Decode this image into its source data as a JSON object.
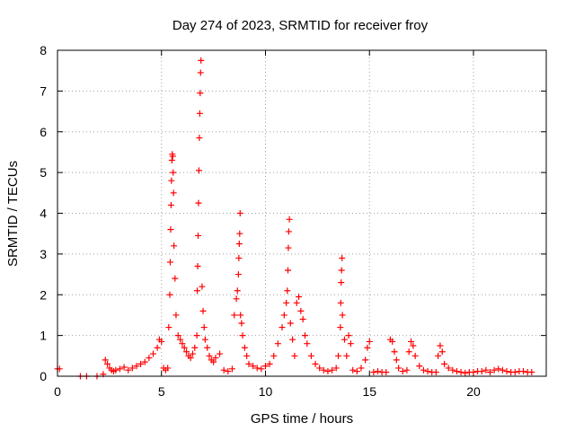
{
  "chart_data": {
    "type": "scatter",
    "title": "Day 274 of 2023, SRMTID for receiver froy",
    "xlabel": "GPS time / hours",
    "ylabel": "SRMTID / TECUs",
    "xlim": [
      0,
      23.5
    ],
    "ylim": [
      0,
      8
    ],
    "xticks": [
      0,
      5,
      10,
      15,
      20
    ],
    "yticks": [
      0,
      1,
      2,
      3,
      4,
      5,
      6,
      7,
      8
    ],
    "xtick_labels": [
      "0",
      "5",
      "10",
      "15",
      "20"
    ],
    "ytick_labels": [
      "0",
      "1",
      "2",
      "3",
      "4",
      "5",
      "6",
      "7",
      "8"
    ],
    "grid": true,
    "marker": "plus",
    "marker_color": "#ff0000",
    "series": [
      {
        "x": [
          0.0,
          0.1,
          1.1,
          1.4,
          1.9,
          2.2,
          2.3,
          2.4,
          2.5,
          2.6,
          2.7,
          2.8,
          3.0,
          3.2,
          3.4,
          3.6,
          3.8,
          4.0,
          4.2,
          4.4,
          4.6,
          4.8,
          4.9,
          5.0,
          5.1,
          5.2,
          5.3,
          5.35,
          5.4,
          5.42,
          5.44,
          5.46,
          5.48,
          5.5,
          5.52,
          5.54,
          5.56,
          5.58,
          5.6,
          5.65,
          5.7,
          5.8,
          5.9,
          6.0,
          6.1,
          6.2,
          6.3,
          6.4,
          6.5,
          6.6,
          6.7,
          6.72,
          6.74,
          6.76,
          6.78,
          6.8,
          6.82,
          6.84,
          6.86,
          6.88,
          6.9,
          6.95,
          7.0,
          7.05,
          7.1,
          7.2,
          7.3,
          7.4,
          7.5,
          7.6,
          7.8,
          8.0,
          8.2,
          8.4,
          8.5,
          8.6,
          8.65,
          8.7,
          8.72,
          8.74,
          8.76,
          8.78,
          8.8,
          8.85,
          8.9,
          9.0,
          9.1,
          9.2,
          9.4,
          9.6,
          9.8,
          10.0,
          10.2,
          10.4,
          10.6,
          10.8,
          10.9,
          11.0,
          11.05,
          11.08,
          11.1,
          11.12,
          11.15,
          11.2,
          11.3,
          11.4,
          11.5,
          11.6,
          11.7,
          11.8,
          11.9,
          12.0,
          12.2,
          12.4,
          12.6,
          12.8,
          13.0,
          13.2,
          13.4,
          13.5,
          13.6,
          13.62,
          13.64,
          13.66,
          13.68,
          13.7,
          13.8,
          13.9,
          14.0,
          14.1,
          14.2,
          14.4,
          14.6,
          14.8,
          14.9,
          15.0,
          15.2,
          15.4,
          15.6,
          15.8,
          16.0,
          16.1,
          16.2,
          16.3,
          16.4,
          16.6,
          16.8,
          16.9,
          17.0,
          17.1,
          17.2,
          17.4,
          17.6,
          17.8,
          18.0,
          18.2,
          18.3,
          18.4,
          18.5,
          18.6,
          18.8,
          19.0,
          19.2,
          19.4,
          19.6,
          19.8,
          20.0,
          20.2,
          20.4,
          20.6,
          20.8,
          21.0,
          21.2,
          21.4,
          21.6,
          21.8,
          22.0,
          22.2,
          22.4,
          22.6,
          22.8
        ],
        "y": [
          0.18,
          0.18,
          0.0,
          0.0,
          0.0,
          0.05,
          0.4,
          0.3,
          0.2,
          0.15,
          0.12,
          0.15,
          0.18,
          0.22,
          0.15,
          0.2,
          0.25,
          0.3,
          0.35,
          0.45,
          0.55,
          0.7,
          0.9,
          0.85,
          0.2,
          0.15,
          0.2,
          1.2,
          2.0,
          2.8,
          3.6,
          4.2,
          4.8,
          5.3,
          5.45,
          5.4,
          5.0,
          4.5,
          3.2,
          2.4,
          1.5,
          1.0,
          0.9,
          0.8,
          0.7,
          0.6,
          0.5,
          0.45,
          0.55,
          0.7,
          1.0,
          2.1,
          2.7,
          3.45,
          4.25,
          5.05,
          5.85,
          6.45,
          6.95,
          7.45,
          7.75,
          2.2,
          1.6,
          1.2,
          0.9,
          0.7,
          0.5,
          0.4,
          0.35,
          0.45,
          0.55,
          0.15,
          0.12,
          0.18,
          1.5,
          1.9,
          2.1,
          2.5,
          2.9,
          3.25,
          3.5,
          4.0,
          1.5,
          1.3,
          1.0,
          0.7,
          0.5,
          0.3,
          0.25,
          0.2,
          0.18,
          0.25,
          0.3,
          0.5,
          0.8,
          1.2,
          1.5,
          1.8,
          2.1,
          2.6,
          3.15,
          3.55,
          3.85,
          1.3,
          0.9,
          0.5,
          1.8,
          1.95,
          1.6,
          1.4,
          1.0,
          0.8,
          0.5,
          0.3,
          0.2,
          0.15,
          0.12,
          0.15,
          0.2,
          0.5,
          1.2,
          1.8,
          2.3,
          2.6,
          2.9,
          1.5,
          0.9,
          0.5,
          1.0,
          0.8,
          0.15,
          0.12,
          0.2,
          0.4,
          0.7,
          0.85,
          0.1,
          0.12,
          0.1,
          0.1,
          0.9,
          0.85,
          0.6,
          0.4,
          0.2,
          0.12,
          0.15,
          0.6,
          0.85,
          0.75,
          0.5,
          0.25,
          0.15,
          0.12,
          0.1,
          0.1,
          0.5,
          0.75,
          0.6,
          0.3,
          0.2,
          0.15,
          0.12,
          0.1,
          0.08,
          0.1,
          0.1,
          0.12,
          0.12,
          0.15,
          0.1,
          0.15,
          0.18,
          0.15,
          0.12,
          0.1,
          0.1,
          0.12,
          0.12,
          0.1,
          0.1
        ]
      }
    ]
  }
}
